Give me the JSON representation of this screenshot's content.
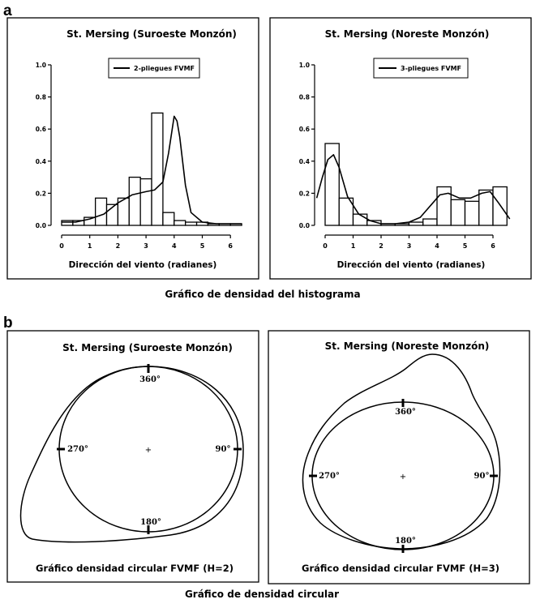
{
  "panel_a": {
    "letter": "a",
    "caption": "Gráfico de densidad del histograma",
    "xlabel": "Dirección del viento (radianes)",
    "x_ticks": [
      "0",
      "1",
      "2",
      "3",
      "4",
      "5",
      "6"
    ],
    "y_ticks": [
      "0.0",
      "0.2",
      "0.4",
      "0.6",
      "0.8",
      "1.0"
    ],
    "left": {
      "title": "St. Mersing (Suroeste Monzón)",
      "legend": "2-pliegues FVMF"
    },
    "right": {
      "title": "St. Mersing (Noreste Monzón)",
      "legend": "3-pliegues FVMF"
    }
  },
  "panel_b": {
    "letter": "b",
    "caption": "Gráfico de densidad circular",
    "left": {
      "title": "St. Mersing (Suroeste Monzón)",
      "subtitle": "Gráfico densidad circular FVMF (H=2)"
    },
    "right": {
      "title": "St. Mersing (Noreste Monzón)",
      "subtitle": "Gráfico densidad circular FVMF (H=3)"
    },
    "directions": [
      "360°",
      "90°",
      "180°",
      "270°"
    ]
  },
  "chart_data": [
    {
      "type": "bar",
      "title": "St. Mersing (Suroeste Monzón)",
      "xlabel": "Dirección del viento (radianes)",
      "ylabel": "",
      "xlim": [
        0,
        6.5
      ],
      "ylim": [
        0,
        1.0
      ],
      "bin_width": 0.4,
      "bin_starts": [
        0,
        0.4,
        0.8,
        1.2,
        1.6,
        2.0,
        2.4,
        2.8,
        3.2,
        3.6,
        4.0,
        4.4,
        4.8,
        5.2,
        5.6,
        6.0
      ],
      "values": [
        0.03,
        0.03,
        0.05,
        0.17,
        0.13,
        0.17,
        0.3,
        0.29,
        0.7,
        0.08,
        0.03,
        0.02,
        0.02,
        0.01,
        0.01,
        0.01
      ],
      "series": [
        {
          "name": "2-pliegues FVMF",
          "type": "line",
          "x": [
            0,
            0.5,
            1.0,
            1.5,
            2.0,
            2.5,
            3.0,
            3.3,
            3.6,
            3.8,
            4.0,
            4.1,
            4.2,
            4.4,
            4.6,
            5.0,
            5.5,
            6.0,
            6.4
          ],
          "y": [
            0.02,
            0.02,
            0.04,
            0.07,
            0.14,
            0.19,
            0.21,
            0.22,
            0.27,
            0.45,
            0.68,
            0.65,
            0.55,
            0.25,
            0.08,
            0.02,
            0.01,
            0.01,
            0.01
          ]
        }
      ]
    },
    {
      "type": "bar",
      "title": "St. Mersing (Noreste Monzón)",
      "xlabel": "Dirección del viento (radianes)",
      "ylabel": "",
      "xlim": [
        -0.3,
        6.6
      ],
      "ylim": [
        0,
        1.0
      ],
      "bin_width": 0.5,
      "bin_starts": [
        0,
        0.5,
        1.0,
        1.5,
        2.0,
        2.5,
        3.0,
        3.5,
        4.0,
        4.5,
        5.0,
        5.5,
        6.0
      ],
      "values": [
        0.51,
        0.17,
        0.07,
        0.03,
        0.01,
        0.01,
        0.02,
        0.04,
        0.24,
        0.16,
        0.15,
        0.22,
        0.24
      ],
      "series": [
        {
          "name": "3-pliegues FVMF",
          "type": "line",
          "x": [
            -0.3,
            -0.1,
            0.1,
            0.3,
            0.5,
            0.8,
            1.2,
            1.6,
            2.0,
            2.5,
            3.0,
            3.4,
            3.8,
            4.1,
            4.4,
            4.8,
            5.2,
            5.6,
            5.9,
            6.2,
            6.6
          ],
          "y": [
            0.17,
            0.3,
            0.41,
            0.44,
            0.36,
            0.18,
            0.07,
            0.03,
            0.01,
            0.01,
            0.02,
            0.05,
            0.13,
            0.19,
            0.2,
            0.17,
            0.17,
            0.2,
            0.21,
            0.14,
            0.04
          ]
        }
      ]
    }
  ]
}
